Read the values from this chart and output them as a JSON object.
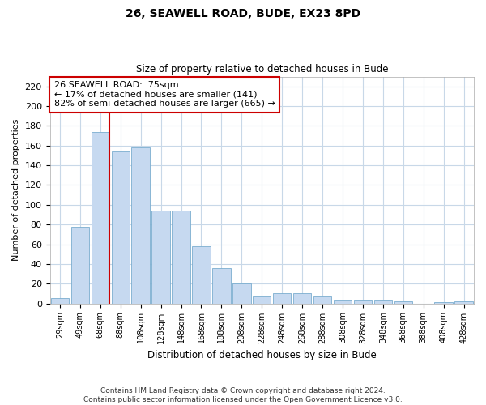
{
  "title1": "26, SEAWELL ROAD, BUDE, EX23 8PD",
  "title2": "Size of property relative to detached houses in Bude",
  "xlabel": "Distribution of detached houses by size in Bude",
  "ylabel": "Number of detached properties",
  "categories": [
    "29sqm",
    "49sqm",
    "68sqm",
    "88sqm",
    "108sqm",
    "128sqm",
    "148sqm",
    "168sqm",
    "188sqm",
    "208sqm",
    "228sqm",
    "248sqm",
    "268sqm",
    "288sqm",
    "308sqm",
    "328sqm",
    "348sqm",
    "368sqm",
    "388sqm",
    "408sqm",
    "428sqm"
  ],
  "values": [
    5,
    78,
    174,
    154,
    158,
    94,
    94,
    58,
    36,
    20,
    7,
    10,
    10,
    7,
    4,
    4,
    4,
    2,
    0,
    1,
    2
  ],
  "bar_color": "#c6d9f0",
  "bar_edge_color": "#7aadcf",
  "vline_color": "#cc0000",
  "annotation_line1": "26 SEAWELL ROAD:  75sqm",
  "annotation_line2": "← 17% of detached houses are smaller (141)",
  "annotation_line3": "82% of semi-detached houses are larger (665) →",
  "annotation_box_color": "#ffffff",
  "annotation_box_edge": "#cc0000",
  "ylim": [
    0,
    230
  ],
  "yticks": [
    0,
    20,
    40,
    60,
    80,
    100,
    120,
    140,
    160,
    180,
    200,
    220
  ],
  "footer": "Contains HM Land Registry data © Crown copyright and database right 2024.\nContains public sector information licensed under the Open Government Licence v3.0.",
  "bg_color": "#ffffff",
  "grid_color": "#c8d8e8"
}
